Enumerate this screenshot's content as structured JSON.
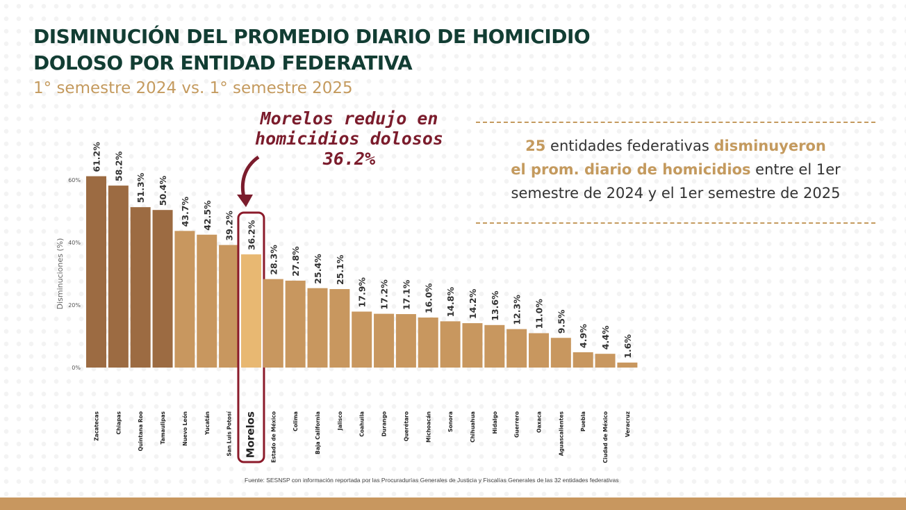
{
  "header": {
    "title_line1": "DISMINUCIÓN DEL PROMEDIO DIARIO DE HOMICIDIO",
    "title_line2": "DOLOSO POR ENTIDAD FEDERATIVA",
    "subtitle": "1° semestre 2024 vs. 1° semestre 2025"
  },
  "callout": {
    "line1": "Morelos redujo en",
    "line2": "homicidios dolosos",
    "line3": "36.2%"
  },
  "infobox": {
    "count": "25",
    "part1": " entidades federativas ",
    "bold1": "disminuyeron",
    "bold2": "el prom. diario de homicidios",
    "part2": " entre el 1er",
    "line3": "semestre de 2024 y el 1er semestre de 2025"
  },
  "source": "Fuente: SESNSP con información reportada por las Procuradurías Generales de Justicia y Fiscalías Generales de las 32 entidades federativas",
  "colors": {
    "title": "#123d33",
    "accent_gold": "#c49a5e",
    "bar_dark": "#9c6b42",
    "bar_light": "#c8975f",
    "bar_highlight": "#e8b872",
    "highlight_border": "#8b1a2a"
  },
  "chart_data": {
    "type": "bar",
    "ylabel": "Disminuciones (%)",
    "ylim": [
      0,
      60
    ],
    "yticks": [
      "0%",
      "20%",
      "40%",
      "60%"
    ],
    "grid": false,
    "highlight": "Morelos",
    "categories": [
      "Zacatecas",
      "Chiapas",
      "Quintana Roo",
      "Tamaulipas",
      "Nuevo León",
      "Yucatán",
      "San Luis Potosí",
      "Morelos",
      "Estado de México",
      "Colima",
      "Baja California",
      "Jalisco",
      "Coahuila",
      "Durango",
      "Querétaro",
      "Michoacán",
      "Sonora",
      "Chihuahua",
      "Hidalgo",
      "Guerrero",
      "Oaxaca",
      "Aguascalientes",
      "Puebla",
      "Ciudad de México",
      "Veracruz"
    ],
    "values": [
      61.2,
      58.2,
      51.3,
      50.4,
      43.7,
      42.5,
      39.2,
      36.2,
      28.3,
      27.8,
      25.4,
      25.1,
      17.9,
      17.2,
      17.1,
      16.0,
      14.8,
      14.2,
      13.6,
      12.3,
      11.0,
      9.5,
      4.9,
      4.4,
      1.6
    ],
    "data_labels": [
      "61.2%",
      "58.2%",
      "51.3%",
      "50.4%",
      "43.7%",
      "42.5%",
      "39.2%",
      "36.2%",
      "28.3%",
      "27.8%",
      "25.4%",
      "25.1%",
      "17.9%",
      "17.2%",
      "17.1%",
      "16.0%",
      "14.8%",
      "14.2%",
      "13.6%",
      "12.3%",
      "11.0%",
      "9.5%",
      "4.9%",
      "4.4%",
      "1.6%"
    ]
  }
}
